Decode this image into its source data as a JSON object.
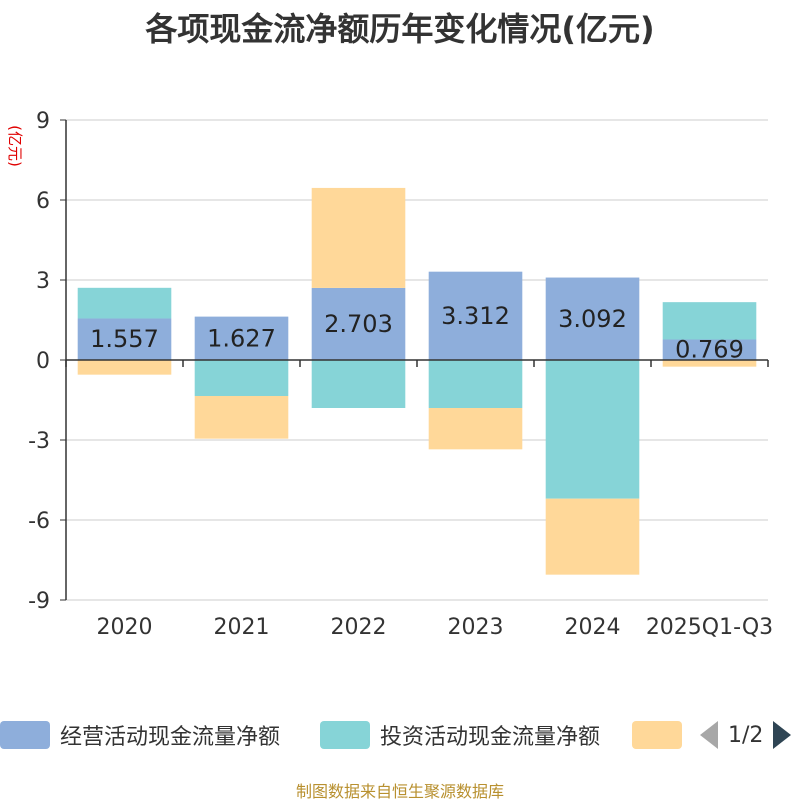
{
  "title": "各项现金流净额历年变化情况(亿元)",
  "chart_data": {
    "type": "bar",
    "stacked": true,
    "title": "各项现金流净额历年变化情况(亿元)",
    "ylabel": "(亿元)",
    "xlabel": "",
    "ylim": [
      -9,
      9
    ],
    "yticks": [
      9,
      6,
      3,
      0,
      -3,
      -6,
      -9
    ],
    "categories": [
      "2020",
      "2021",
      "2022",
      "2023",
      "2024",
      "2025Q1-Q3"
    ],
    "series": [
      {
        "name": "经营活动现金流量净额",
        "color": "#8eaedb",
        "values": [
          1.557,
          1.627,
          2.703,
          3.312,
          3.092,
          0.769
        ],
        "labels": [
          "1.557",
          "1.627",
          "2.703",
          "3.312",
          "3.092",
          "0.769"
        ]
      },
      {
        "name": "投资活动现金流量净额",
        "color": "#86d4d7",
        "values": [
          1.15,
          -1.35,
          -1.8,
          -1.8,
          -5.2,
          1.4
        ]
      },
      {
        "name": "",
        "color": "#ffd899",
        "values": [
          -0.55,
          -1.6,
          3.75,
          -1.55,
          -2.85,
          -0.25
        ]
      }
    ],
    "legend_position": "bottom"
  },
  "legend": {
    "items": [
      {
        "label": "经营活动现金流量净额",
        "color": "#8eaedb"
      },
      {
        "label": "投资活动现金流量净额",
        "color": "#86d4d7"
      },
      {
        "label": "",
        "color": "#ffd899"
      }
    ],
    "page": "1/2"
  },
  "source": "制图数据来自恒生聚源数据库"
}
